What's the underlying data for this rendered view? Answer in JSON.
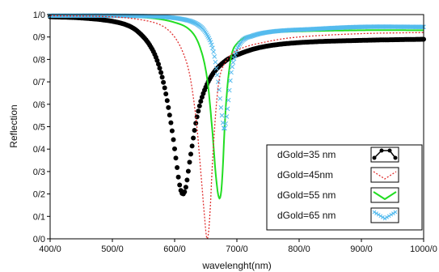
{
  "chart_data": {
    "type": "line",
    "title": "",
    "xlabel": "wavelenght(nm)",
    "ylabel": "Reflection",
    "xlim": [
      400,
      1000
    ],
    "ylim": [
      0,
      1
    ],
    "x_ticks": [
      400,
      500,
      600,
      700,
      800,
      900,
      1000
    ],
    "x_tick_labels": [
      "400/0",
      "500/0",
      "600/0",
      "700/0",
      "800/0",
      "900/0",
      "1000/0"
    ],
    "y_ticks": [
      0,
      0.1,
      0.2,
      0.3,
      0.4,
      0.5,
      0.6,
      0.7,
      0.8,
      0.9,
      1.0
    ],
    "y_tick_labels": [
      "0/0",
      "0/1",
      "0/2",
      "0/3",
      "0/4",
      "0/5",
      "0/6",
      "0/7",
      "0/8",
      "0/9",
      "1/0"
    ],
    "grid": false,
    "legend_position": "bottom-right",
    "series": [
      {
        "name": "dGold=35 nm",
        "color": "#000000",
        "style": "dots",
        "x": [
          400,
          450,
          500,
          530,
          550,
          565,
          575,
          585,
          595,
          602,
          608,
          613,
          618,
          625,
          635,
          645,
          660,
          680,
          700,
          740,
          800,
          900,
          1000
        ],
        "y": [
          0.99,
          0.985,
          0.97,
          0.945,
          0.9,
          0.84,
          0.77,
          0.66,
          0.5,
          0.36,
          0.24,
          0.2,
          0.23,
          0.36,
          0.53,
          0.64,
          0.73,
          0.79,
          0.82,
          0.855,
          0.875,
          0.885,
          0.89
        ]
      },
      {
        "name": "dGold=45nm",
        "color": "#e03030",
        "style": "dotted",
        "x": [
          400,
          500,
          550,
          580,
          600,
          615,
          625,
          635,
          642,
          648,
          652,
          656,
          662,
          670,
          680,
          700,
          750,
          800,
          900,
          1000
        ],
        "y": [
          0.995,
          0.99,
          0.975,
          0.95,
          0.9,
          0.82,
          0.72,
          0.52,
          0.3,
          0.1,
          0.0,
          0.08,
          0.4,
          0.68,
          0.78,
          0.84,
          0.88,
          0.9,
          0.915,
          0.92
        ]
      },
      {
        "name": "dGold=55 nm",
        "color": "#22dd22",
        "style": "solid",
        "x": [
          400,
          500,
          560,
          600,
          625,
          640,
          652,
          660,
          667,
          672,
          676,
          682,
          690,
          700,
          720,
          760,
          800,
          900,
          1000
        ],
        "y": [
          0.995,
          0.99,
          0.985,
          0.965,
          0.93,
          0.86,
          0.72,
          0.5,
          0.26,
          0.18,
          0.25,
          0.58,
          0.8,
          0.87,
          0.905,
          0.92,
          0.925,
          0.93,
          0.93
        ]
      },
      {
        "name": "dGold=65 nm",
        "color": "#55bbee",
        "style": "crosses",
        "x": [
          400,
          500,
          580,
          620,
          640,
          652,
          662,
          670,
          676,
          680,
          685,
          692,
          705,
          725,
          760,
          820,
          900,
          1000
        ],
        "y": [
          0.995,
          0.995,
          0.99,
          0.975,
          0.95,
          0.91,
          0.84,
          0.7,
          0.55,
          0.49,
          0.58,
          0.76,
          0.87,
          0.905,
          0.925,
          0.935,
          0.945,
          0.945
        ]
      }
    ]
  }
}
